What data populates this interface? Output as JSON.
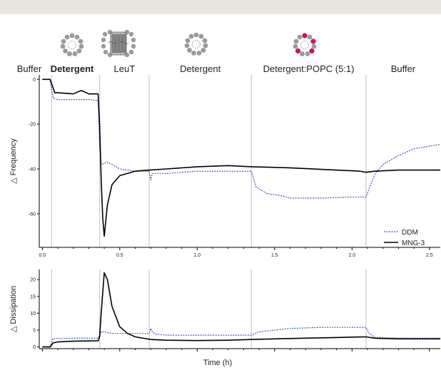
{
  "chart_data": [
    {
      "type": "line",
      "xlabel": "",
      "ylabel": "Frequency",
      "ylabel_prefix": "△",
      "ylim": [
        -75,
        2
      ],
      "yticks": [
        0,
        -20,
        -40,
        -60
      ],
      "xlim": [
        -0.02,
        2.57
      ],
      "xticks": [
        "0.0",
        "0.5",
        "1.0",
        "1.5",
        "2.0",
        "2.5"
      ],
      "phase_boundaries": [
        0.06,
        0.37,
        0.69,
        1.35,
        2.09
      ],
      "phases": [
        {
          "label": "Buffer",
          "bold": false
        },
        {
          "label": "Detergent",
          "bold": true
        },
        {
          "label": "LeuT",
          "bold": false
        },
        {
          "label": "Detergent",
          "bold": false
        },
        {
          "label": "Detergent:POPC (5:1)",
          "bold": false
        },
        {
          "label": "Buffer",
          "bold": false
        }
      ],
      "icons": [
        "detergent-micelle-icon",
        "leut-protein-icon",
        "detergent-micelle-icon",
        "mixed-micelle-icon"
      ],
      "legend": {
        "position": "bottom-right"
      },
      "series": [
        {
          "name": "DDM",
          "color": "#3b5bbf",
          "style": "dotted",
          "x": [
            0.0,
            0.05,
            0.07,
            0.1,
            0.2,
            0.3,
            0.36,
            0.37,
            0.38,
            0.42,
            0.45,
            0.5,
            0.55,
            0.6,
            0.69,
            0.7,
            0.71,
            0.72,
            0.8,
            1.0,
            1.2,
            1.35,
            1.38,
            1.45,
            1.55,
            1.6,
            1.7,
            1.8,
            2.0,
            2.09,
            2.12,
            2.15,
            2.2,
            2.3,
            2.4,
            2.57
          ],
          "y": [
            0,
            0,
            -8.5,
            -9,
            -9,
            -9,
            -9.5,
            -30,
            -38,
            -37,
            -38,
            -40,
            -40.5,
            -41,
            -41,
            -45,
            -42,
            -42,
            -42,
            -41,
            -41,
            -41,
            -48,
            -51,
            -52,
            -53,
            -53,
            -53,
            -52.5,
            -52.5,
            -47,
            -42,
            -38,
            -34,
            -31,
            -29
          ]
        },
        {
          "name": "MNG-3",
          "color": "#000000",
          "style": "solid",
          "x": [
            0.0,
            0.05,
            0.06,
            0.08,
            0.1,
            0.2,
            0.25,
            0.27,
            0.3,
            0.36,
            0.37,
            0.38,
            0.39,
            0.4,
            0.42,
            0.45,
            0.5,
            0.6,
            0.69,
            0.8,
            1.0,
            1.2,
            1.35,
            1.6,
            1.9,
            2.05,
            2.09,
            2.15,
            2.3,
            2.57
          ],
          "y": [
            0,
            0,
            -2,
            -6,
            -6,
            -6.5,
            -5,
            -5.5,
            -6.5,
            -6.5,
            -20,
            -45,
            -62,
            -70,
            -56,
            -47,
            -43,
            -41,
            -40.5,
            -40,
            -39,
            -38.5,
            -39,
            -39.5,
            -40.5,
            -41,
            -41.5,
            -41,
            -40.5,
            -40.5
          ]
        }
      ]
    },
    {
      "type": "line",
      "xlabel": "Time (h)",
      "ylabel": "Dissipation",
      "ylabel_prefix": "△",
      "ylim": [
        -0.5,
        23
      ],
      "yticks": [
        0,
        5,
        10,
        15,
        20
      ],
      "xlim": [
        -0.02,
        2.57
      ],
      "phase_boundaries": [
        0.06,
        0.37,
        0.69,
        1.35,
        2.09
      ],
      "series": [
        {
          "name": "DDM",
          "color": "#3b5bbf",
          "style": "dotted",
          "x": [
            0.0,
            0.05,
            0.07,
            0.1,
            0.2,
            0.36,
            0.37,
            0.38,
            0.4,
            0.45,
            0.5,
            0.6,
            0.69,
            0.7,
            0.71,
            0.73,
            0.8,
            1.0,
            1.2,
            1.35,
            1.4,
            1.5,
            1.6,
            1.8,
            2.0,
            2.09,
            2.11,
            2.15,
            2.3,
            2.57
          ],
          "y": [
            0,
            0,
            2.5,
            2.5,
            2.6,
            2.6,
            3.5,
            4.5,
            4.5,
            4,
            4,
            4,
            4,
            5.5,
            4.5,
            3.8,
            3.5,
            3.5,
            3.5,
            3.5,
            4.5,
            5,
            5.5,
            5.8,
            5.8,
            5.8,
            4,
            2.8,
            2.6,
            2.6
          ]
        },
        {
          "name": "MNG-3",
          "color": "#000000",
          "style": "solid",
          "x": [
            0.0,
            0.05,
            0.07,
            0.1,
            0.2,
            0.36,
            0.37,
            0.38,
            0.4,
            0.42,
            0.45,
            0.5,
            0.55,
            0.6,
            0.7,
            0.8,
            1.0,
            1.2,
            1.35,
            1.6,
            1.9,
            2.09,
            2.15,
            2.3,
            2.57
          ],
          "y": [
            0,
            0,
            1.2,
            1.5,
            1.7,
            1.8,
            3,
            10,
            22,
            20,
            12,
            6,
            4,
            3,
            2.2,
            2,
            1.9,
            2,
            2.2,
            2.5,
            2.8,
            3,
            2.6,
            2.4,
            2.4
          ]
        }
      ]
    }
  ]
}
